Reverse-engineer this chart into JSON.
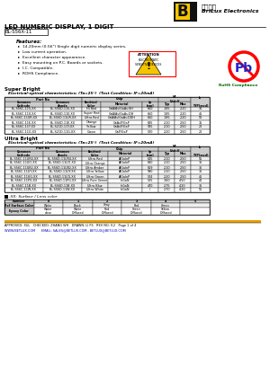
{
  "title_main": "LED NUMERIC DISPLAY, 1 DIGIT",
  "part_number": "BL-S56X-11",
  "company_name": "BriLux Electronics",
  "company_chinese": "百殧光电",
  "features": [
    "14.20mm (0.56\") Single digit numeric display series.",
    "Low current operation.",
    "Excellent character appearance.",
    "Easy mounting on P.C. Boards or sockets.",
    "I.C. Compatible.",
    "ROHS Compliance."
  ],
  "super_bright_title": "Super Bright",
  "super_bright_subtitle": "   Electrical-optical characteristics: (Ta=25°)  (Test Condition: IF=20mA)",
  "super_bright_rows": [
    [
      "BL-S56C-115-XX",
      "BL-S56D-115-XX",
      "Hi Red",
      "GaAlAs/GaAs:SH",
      "660",
      "1.85",
      "2.20",
      "30"
    ],
    [
      "BL-S56C-110-XX",
      "BL-S56D-110-XX",
      "Super Red",
      "GaAlAs/GaAs:DH",
      "660",
      "1.85",
      "2.20",
      "45"
    ],
    [
      "BL-S56C-11UR-XX",
      "BL-S56D-11UR-XX",
      "Ultra Red",
      "GaAlAs/GaAs:DDH",
      "660",
      "1.85",
      "2.20",
      "50"
    ],
    [
      "BL-S56C-11E-XX",
      "BL-S56D-11E-XX",
      "Orange",
      "GaAsP/GaP",
      "635",
      "2.10",
      "2.50",
      "35"
    ],
    [
      "BL-S56C-11Y-XX",
      "BL-S21D-11Y-XX",
      "Yellow",
      "GaAsP/GaP",
      "585",
      "2.10",
      "2.50",
      "20"
    ],
    [
      "BL-S56C-11G-XX",
      "BL-S21D-11G-XX",
      "Green",
      "GaP/GaP",
      "570",
      "2.20",
      "2.50",
      "20"
    ]
  ],
  "ultra_bright_title": "Ultra Bright",
  "ultra_bright_subtitle": "   Electrical-optical characteristics: (Ta=25°)  (Test Condition: IF=20mA)",
  "ultra_bright_rows": [
    [
      "BL-S56C-11UR4-XX",
      "BL-S56D-11UR4-XX",
      "Ultra Red",
      "AlGaInP",
      "645",
      "2.10",
      "2.50",
      "55"
    ],
    [
      "BL-S56C-11UO-XX",
      "BL-S56D-11UO-XX",
      "Ultra Orange",
      "AlGaInP",
      "630",
      "2.10",
      "2.50",
      "36"
    ],
    [
      "BL-S56C-11UB2-XX",
      "BL-S56D-11UB2-XX",
      "Ultra Amber",
      "AlGaInP",
      "619",
      "2.10",
      "2.50",
      "36"
    ],
    [
      "BL-S56C-11UY-XX",
      "BL-S56D-11UY-XX",
      "Ultra Yellow",
      "AlGaInP",
      "590",
      "2.10",
      "2.50",
      "36"
    ],
    [
      "BL-S56C-11UG-XX",
      "BL-S56D-11UG-XX",
      "Ultra Green",
      "AlGaInP",
      "574",
      "2.20",
      "2.50",
      "45"
    ],
    [
      "BL-S56C-11PG-XX",
      "BL-S56D-11PG-XX",
      "Ultra Pure Green",
      "InGaN",
      "525",
      "3.60",
      "4.50",
      "40"
    ],
    [
      "BL-S56C-11B-XX",
      "BL-S56D-11B-XX",
      "Ultra Blue",
      "InGaN",
      "470",
      "2.75",
      "4.20",
      "36"
    ],
    [
      "BL-S56C-11W-XX",
      "BL-S56D-11W-XX",
      "Ultra White",
      "InGaN",
      "/",
      "2.70",
      "4.20",
      "55"
    ]
  ],
  "surface_lens_title": "-XX: Surface / Lens color",
  "surface_lens_numbers": [
    "0",
    "1",
    "2",
    "3",
    "4",
    "5"
  ],
  "surface_color_label": "Ref Surface Color",
  "epoxy_color_label": "Epoxy Color",
  "surface_colors": [
    "White",
    "Black",
    "Gray",
    "Red",
    "Green",
    ""
  ],
  "epoxy_colors": [
    "Water\nclear",
    "White\nDiffused",
    "Red\nDiffused",
    "Green\nDiffused",
    "Yellow\nDiffused",
    ""
  ],
  "footer_text": "APPROVED: XUL   CHECKED: ZHANG WH   DRAWN: LI FS   REV NO: V.2   Page 1 of 4",
  "footer_url": "WWW.BETLUX.COM      EMAIL: SALES@BETLUX.COM , BETLUX@BETLUX.COM",
  "bg_color": "#ffffff"
}
